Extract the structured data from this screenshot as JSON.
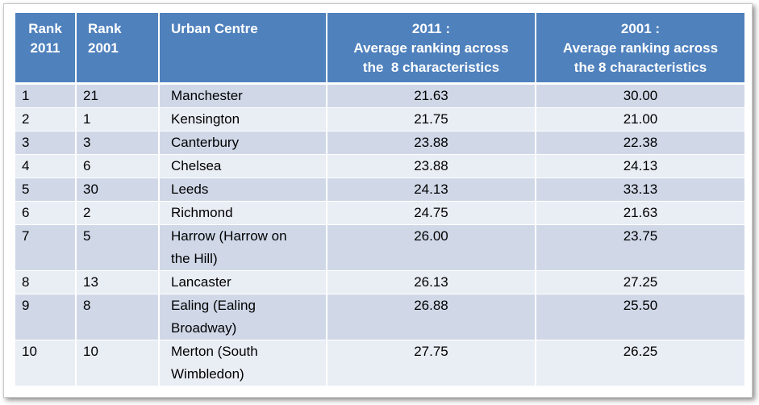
{
  "headers": {
    "rank2011": [
      "Rank",
      "2011"
    ],
    "rank2001": [
      "Rank",
      "2001"
    ],
    "urban": "Urban Centre",
    "avg2011": [
      "2011 :",
      "Average ranking across",
      "the  8 characteristics"
    ],
    "avg2001": [
      "2001 :",
      "Average ranking across",
      "the 8 characteristics"
    ]
  },
  "rows": [
    {
      "r2011": "1",
      "r2001": "21",
      "city": [
        "Manchester"
      ],
      "avg2011": "21.63",
      "avg2001": "30.00"
    },
    {
      "r2011": "2",
      "r2001": "1",
      "city": [
        "Kensington"
      ],
      "avg2011": "21.75",
      "avg2001": "21.00"
    },
    {
      "r2011": "3",
      "r2001": "3",
      "city": [
        "Canterbury"
      ],
      "avg2011": "23.88",
      "avg2001": "22.38"
    },
    {
      "r2011": "4",
      "r2001": "6",
      "city": [
        "Chelsea"
      ],
      "avg2011": "23.88",
      "avg2001": "24.13"
    },
    {
      "r2011": "5",
      "r2001": "30",
      "city": [
        "Leeds"
      ],
      "avg2011": "24.13",
      "avg2001": "33.13"
    },
    {
      "r2011": "6",
      "r2001": "2",
      "city": [
        "Richmond"
      ],
      "avg2011": "24.75",
      "avg2001": "21.63"
    },
    {
      "r2011": "7",
      "r2001": "5",
      "city": [
        "Harrow (Harrow on",
        "the Hill)"
      ],
      "avg2011": "26.00",
      "avg2001": "23.75"
    },
    {
      "r2011": "8",
      "r2001": "13",
      "city": [
        "Lancaster"
      ],
      "avg2011": "26.13",
      "avg2001": "27.25"
    },
    {
      "r2011": "9",
      "r2001": "8",
      "city": [
        "Ealing (Ealing",
        "Broadway)"
      ],
      "avg2011": "26.88",
      "avg2001": "25.50"
    },
    {
      "r2011": "10",
      "r2001": "10",
      "city": [
        "Merton (South",
        "Wimbledon)"
      ],
      "avg2011": "27.75",
      "avg2001": "26.25"
    }
  ],
  "colors": {
    "header": "#4f81bd",
    "row_dark": "#d0d8e8",
    "row_light": "#e9edf4"
  }
}
